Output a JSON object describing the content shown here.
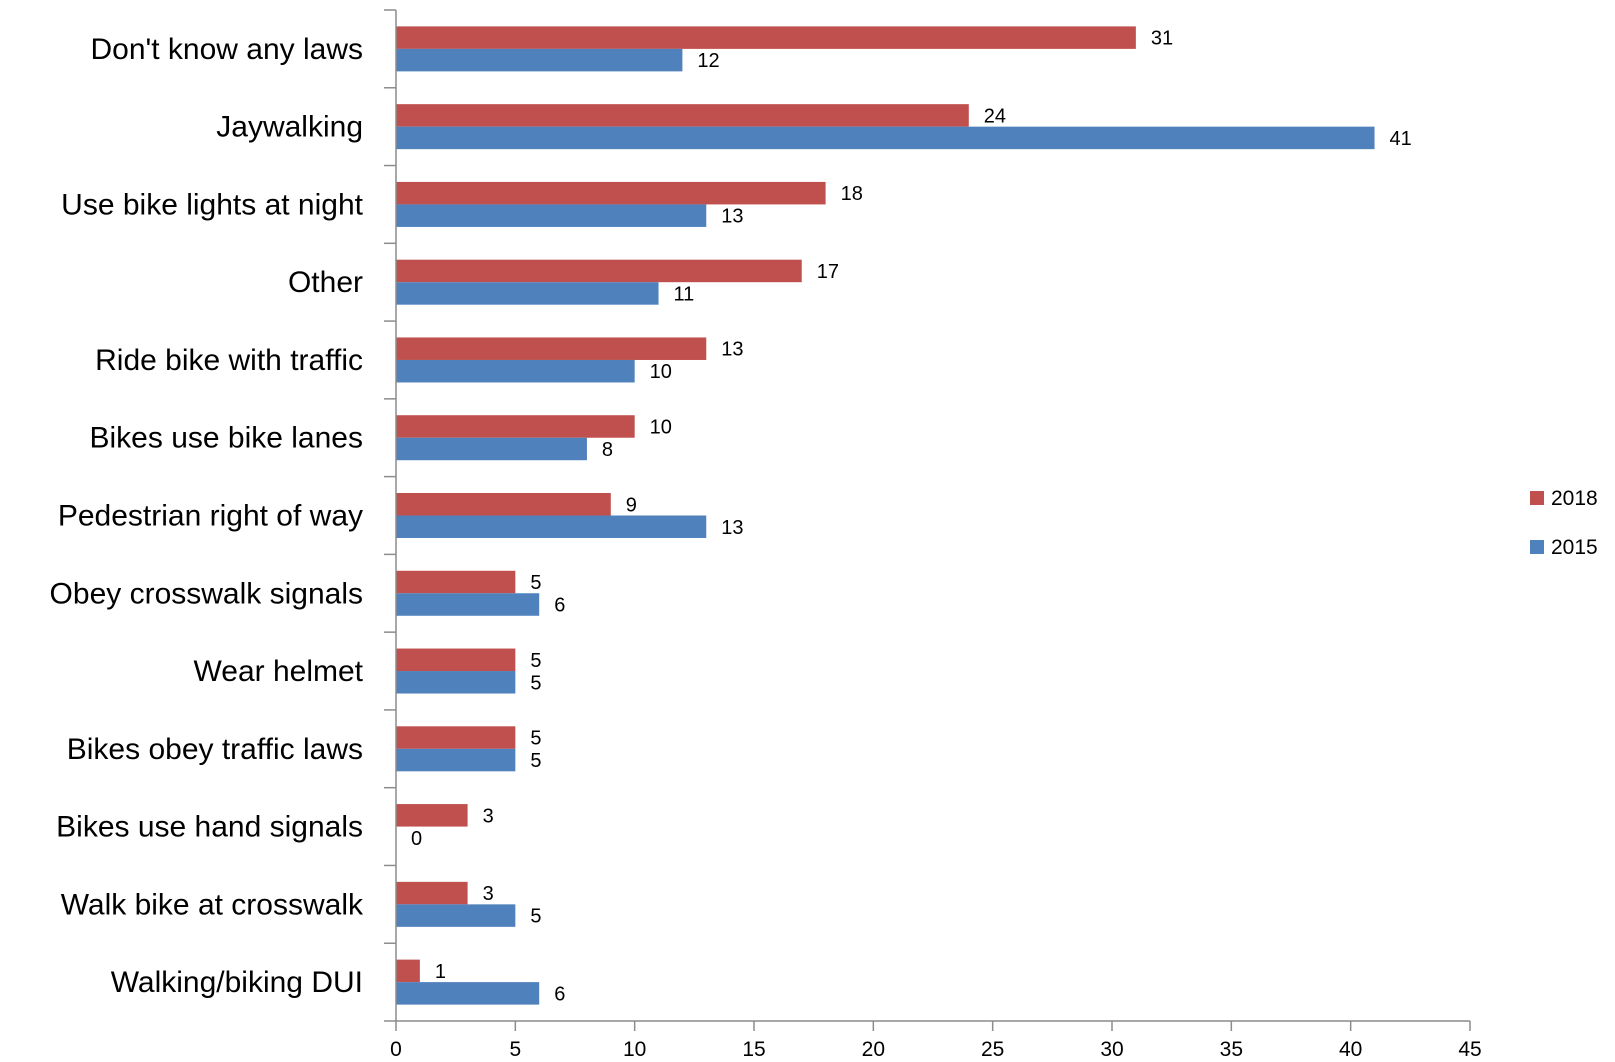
{
  "chart_data": {
    "type": "bar",
    "orientation": "horizontal",
    "title": "",
    "xlabel": "",
    "ylabel": "",
    "xlim": [
      0,
      45
    ],
    "x_ticks": [
      0,
      5,
      10,
      15,
      20,
      25,
      30,
      35,
      40,
      45
    ],
    "grid": false,
    "legend_position": "right",
    "categories": [
      "Don't know any laws",
      "Jaywalking",
      "Use bike lights at night",
      "Other",
      "Ride bike with traffic",
      "Bikes use bike lanes",
      "Pedestrian right of way",
      "Obey crosswalk signals",
      "Wear helmet",
      "Bikes obey traffic laws",
      "Bikes use hand signals",
      "Walk bike at crosswalk",
      "Walking/biking DUI"
    ],
    "series": [
      {
        "name": "2018",
        "color": "#C0504D",
        "values": [
          31,
          24,
          18,
          17,
          13,
          10,
          9,
          5,
          5,
          5,
          3,
          3,
          1
        ]
      },
      {
        "name": "2015",
        "color": "#4F81BD",
        "values": [
          12,
          41,
          13,
          11,
          10,
          8,
          13,
          6,
          5,
          5,
          0,
          5,
          6
        ]
      }
    ]
  }
}
